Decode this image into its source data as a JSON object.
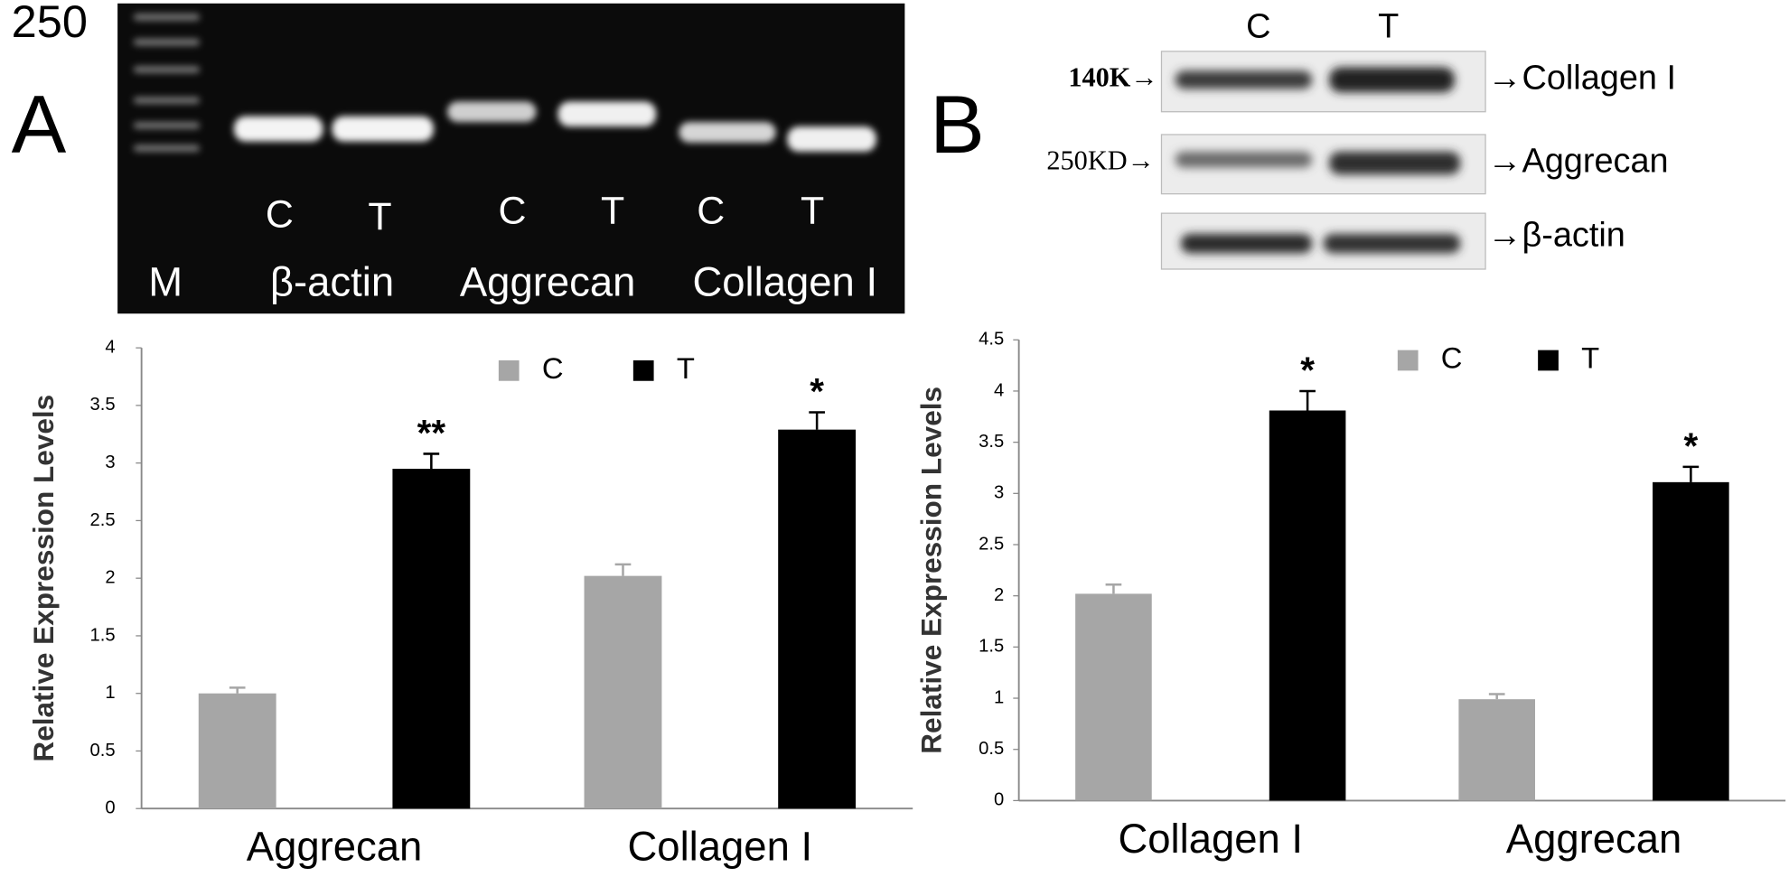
{
  "gel_a": {
    "marker": "250",
    "panel": "A",
    "lanes": [
      "C",
      "T",
      "C",
      "T",
      "C",
      "T"
    ],
    "labels": [
      "M",
      "β-actin",
      "Aggrecan",
      "Collagen I"
    ]
  },
  "blot_b": {
    "panel": "B",
    "lanes": [
      "C",
      "T"
    ],
    "left_labels": [
      "140K→",
      "250KD→"
    ],
    "right_labels": [
      "→Collagen I",
      "→Aggrecan",
      "→β-actin"
    ]
  },
  "chart_data": [
    {
      "type": "bar",
      "y_label": "Relative Expression Levels",
      "categories": [
        "Aggrecan",
        "Collagen I"
      ],
      "series": [
        {
          "name": "C",
          "color": "#a6a6a6",
          "values": [
            1.0,
            2.02
          ],
          "errors": [
            0.05,
            0.1
          ]
        },
        {
          "name": "T",
          "color": "#000000",
          "values": [
            2.95,
            3.29
          ],
          "errors": [
            0.13,
            0.15
          ],
          "annotations": [
            "**",
            "*"
          ]
        }
      ],
      "ylim": [
        0,
        4
      ],
      "yticks": [
        0,
        0.5,
        1,
        1.5,
        2,
        2.5,
        3,
        3.5,
        4
      ],
      "grid": false
    },
    {
      "type": "bar",
      "y_label": "Relative Expression Levels",
      "categories": [
        "Collagen I",
        "Aggrecan"
      ],
      "series": [
        {
          "name": "C",
          "color": "#a6a6a6",
          "values": [
            2.02,
            0.99
          ],
          "errors": [
            0.09,
            0.05
          ]
        },
        {
          "name": "T",
          "color": "#000000",
          "values": [
            3.81,
            3.11
          ],
          "errors": [
            0.19,
            0.15
          ],
          "annotations": [
            "*",
            "*"
          ]
        }
      ],
      "ylim": [
        0,
        4.5
      ],
      "yticks": [
        0,
        0.5,
        1,
        1.5,
        2,
        2.5,
        3,
        3.5,
        4,
        4.5
      ],
      "grid": false
    }
  ]
}
